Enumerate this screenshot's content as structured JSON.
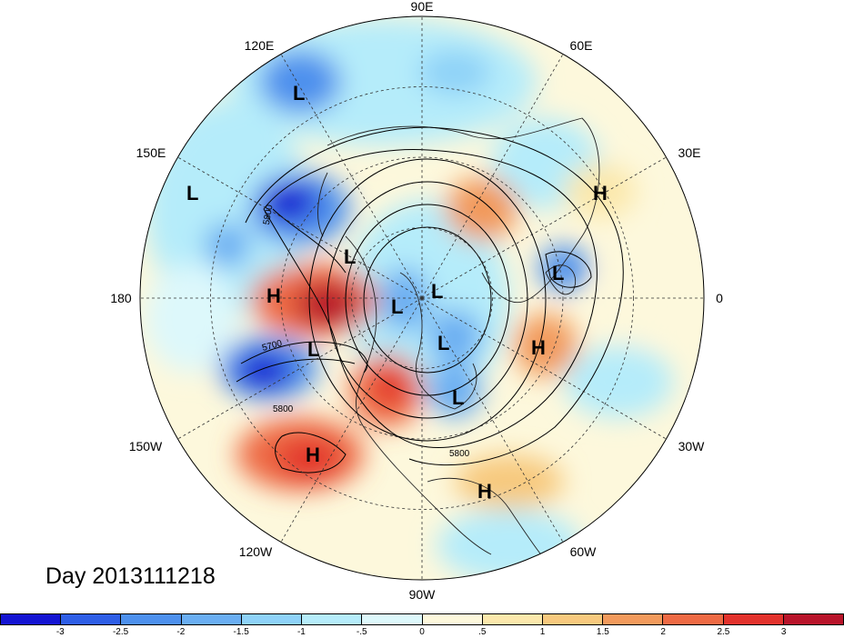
{
  "map": {
    "projection": "north-polar-stereographic",
    "longitude_labels": [
      {
        "text": "90E",
        "lon": 90
      },
      {
        "text": "60E",
        "lon": 60
      },
      {
        "text": "30E",
        "lon": 30
      },
      {
        "text": "0",
        "lon": 0
      },
      {
        "text": "30W",
        "lon": -30
      },
      {
        "text": "60W",
        "lon": -60
      },
      {
        "text": "90W",
        "lon": -90
      },
      {
        "text": "120W",
        "lon": -120
      },
      {
        "text": "150W",
        "lon": -150
      },
      {
        "text": "180",
        "lon": 180
      },
      {
        "text": "150E",
        "lon": 150
      },
      {
        "text": "120E",
        "lon": 120
      }
    ],
    "contour_labels": [
      "5800",
      "5700",
      "5800",
      "5800"
    ],
    "pressure_centers": [
      {
        "type": "L",
        "label": "L"
      },
      {
        "type": "L",
        "label": "L"
      },
      {
        "type": "L",
        "label": "L"
      },
      {
        "type": "L",
        "label": "L"
      },
      {
        "type": "L",
        "label": "L"
      },
      {
        "type": "L",
        "label": "L"
      },
      {
        "type": "L",
        "label": "L"
      },
      {
        "type": "L",
        "label": "L"
      },
      {
        "type": "L",
        "label": "L"
      },
      {
        "type": "H",
        "label": "H"
      },
      {
        "type": "H",
        "label": "H"
      },
      {
        "type": "H",
        "label": "H"
      },
      {
        "type": "H",
        "label": "H"
      },
      {
        "type": "H",
        "label": "H"
      }
    ]
  },
  "title": "Day 2013111218",
  "colorbar": {
    "colors": [
      "#1414d2",
      "#2e5ee6",
      "#4d90ed",
      "#6aaef2",
      "#8ed2f8",
      "#b5ecfa",
      "#ddf8fb",
      "#fdf8dc",
      "#fbe8ac",
      "#f7c97e",
      "#f29a5c",
      "#ee6a44",
      "#e2322c",
      "#b8142a"
    ],
    "ticks": [
      "-3",
      "-2.5",
      "-2",
      "-1.5",
      "-1",
      "-.5",
      "0",
      ".5",
      "1",
      "1.5",
      "2",
      "2.5",
      "3"
    ]
  }
}
